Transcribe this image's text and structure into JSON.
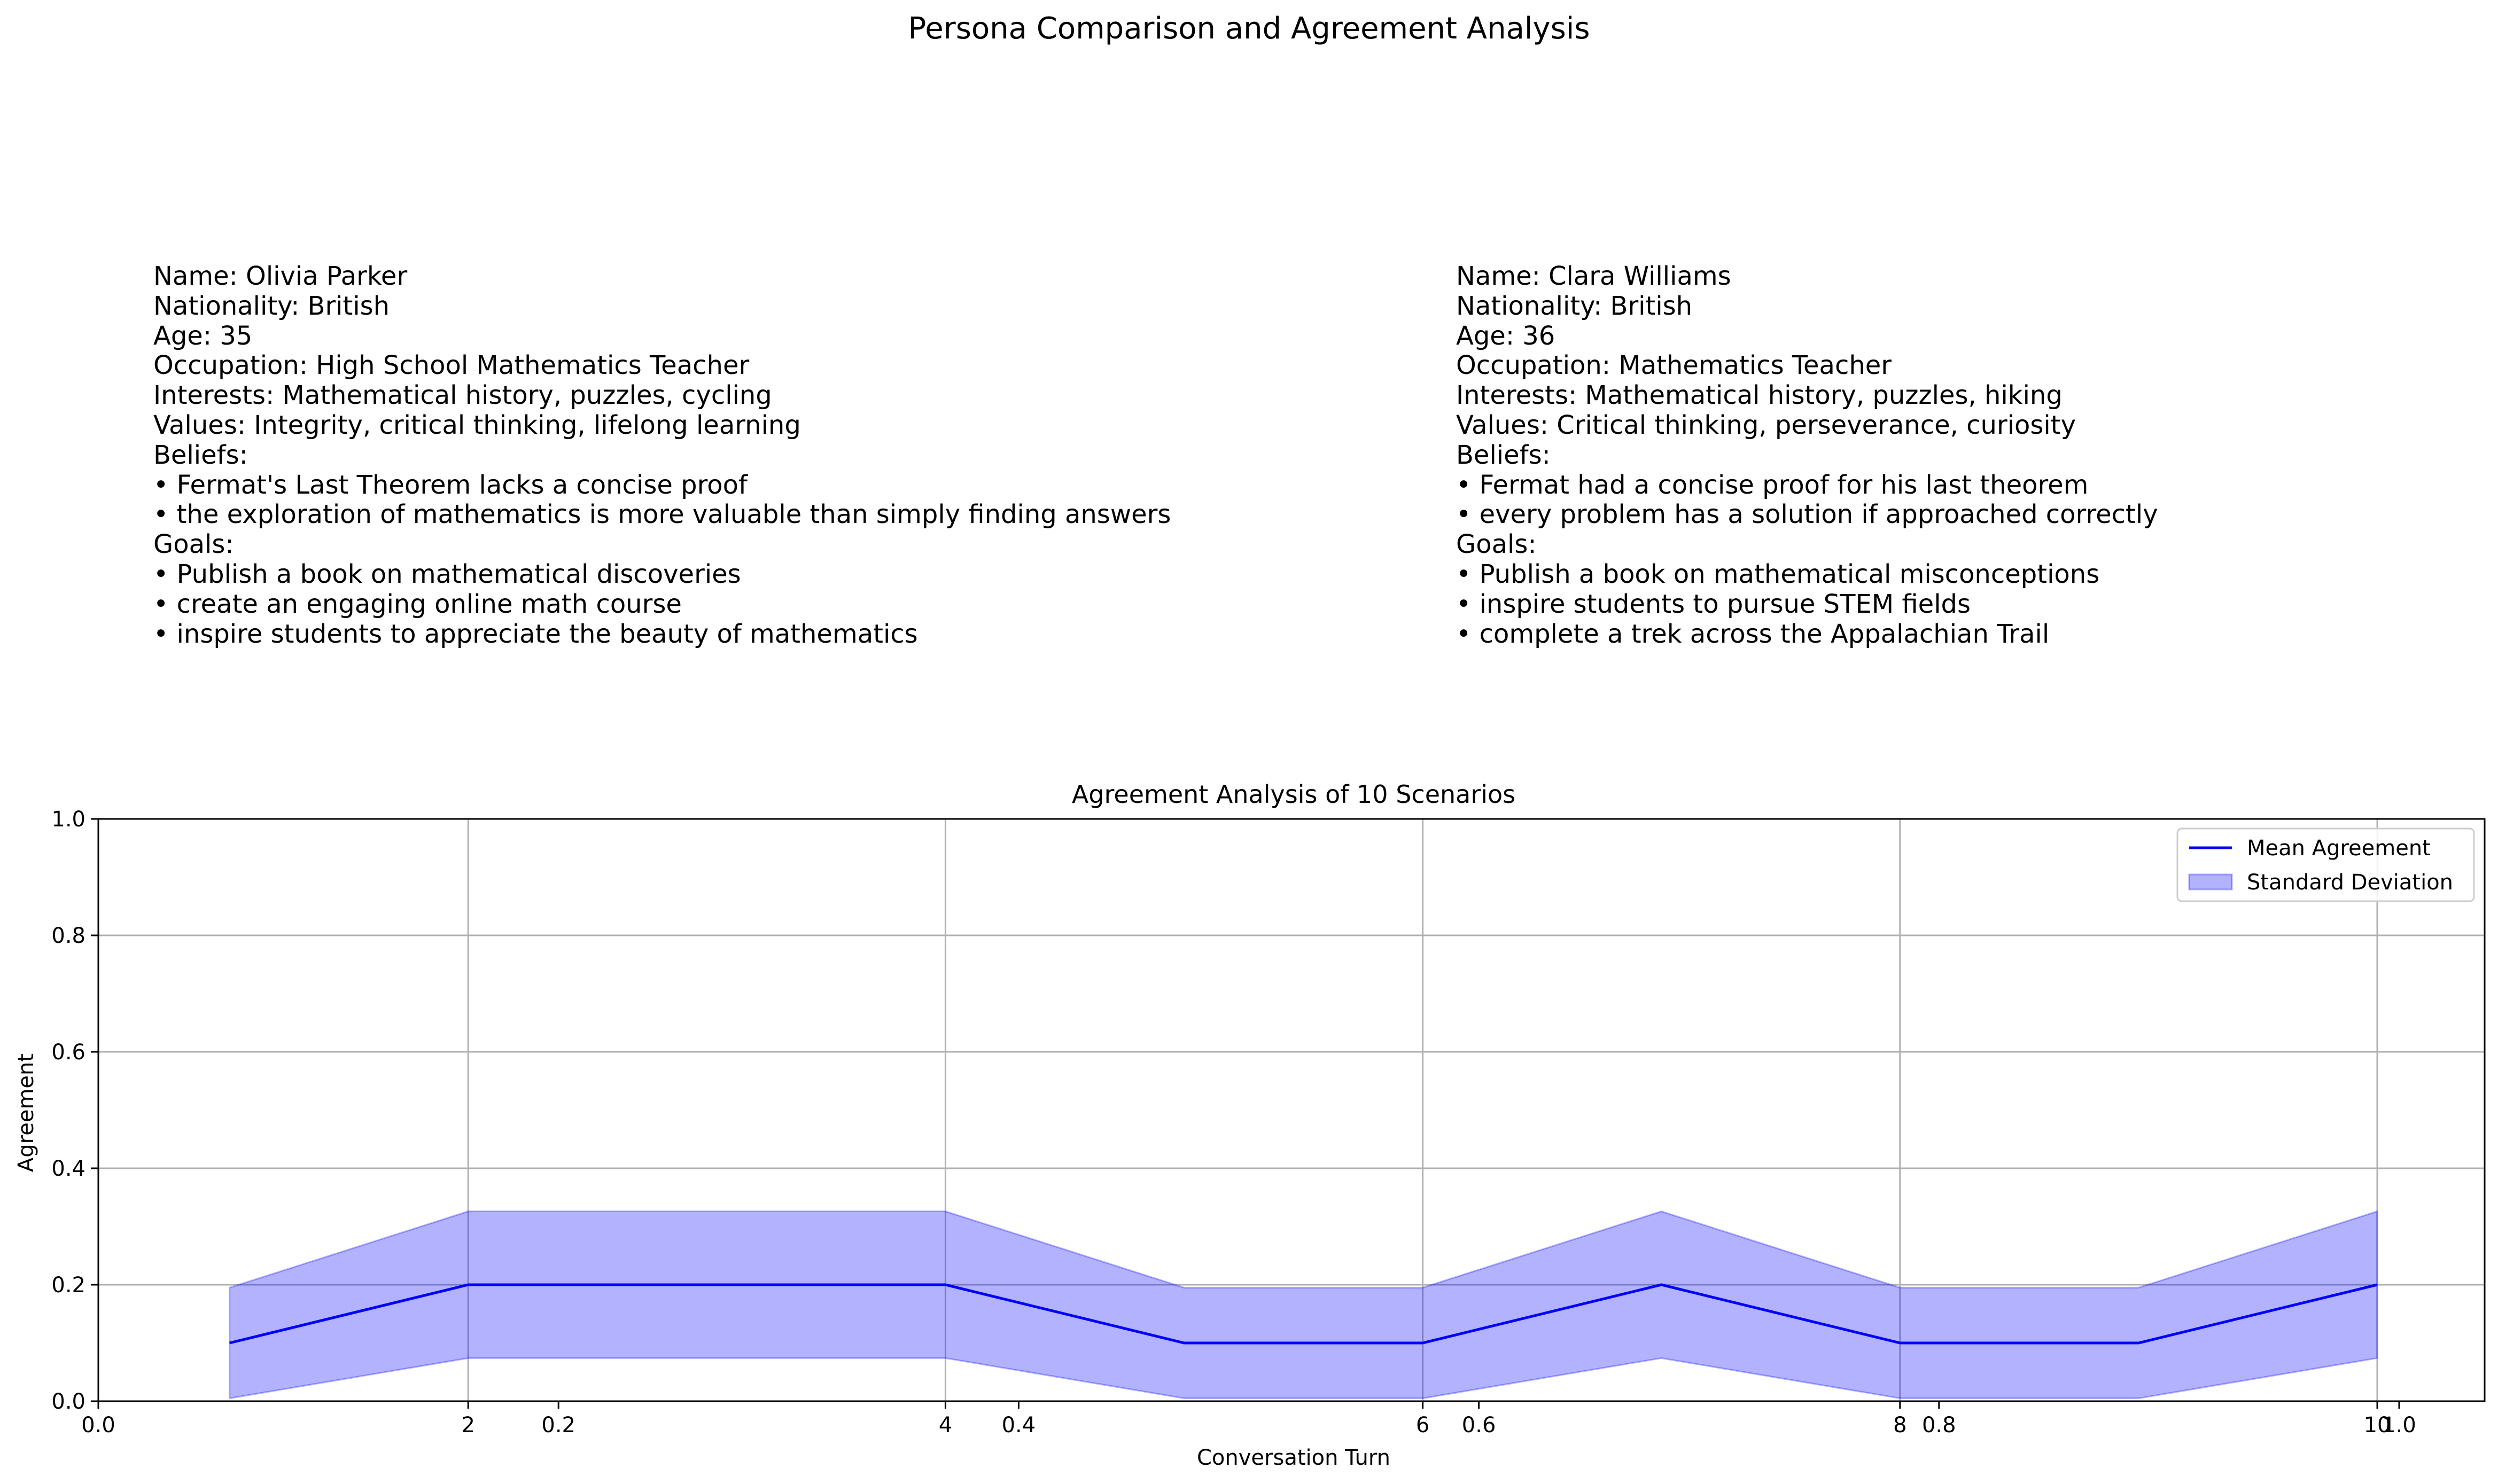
{
  "figure": {
    "suptitle": "Persona Comparison and Agreement Analysis"
  },
  "personas": [
    {
      "lines": [
        "Name: Olivia Parker",
        "Nationality: British",
        "Age: 35",
        "Occupation: High School Mathematics Teacher",
        "Interests: Mathematical history, puzzles, cycling",
        "Values: Integrity, critical thinking, lifelong learning",
        "Beliefs:",
        "• Fermat's Last Theorem lacks a concise proof",
        "• the exploration of mathematics is more valuable than simply finding answers",
        "Goals:",
        "• Publish a book on mathematical discoveries",
        "• create an engaging online math course",
        "• inspire students to appreciate the beauty of mathematics"
      ]
    },
    {
      "lines": [
        "Name: Clara Williams",
        "Nationality: British",
        "Age: 36",
        "Occupation: Mathematics Teacher",
        "Interests: Mathematical history, puzzles, hiking",
        "Values: Critical thinking, perseverance, curiosity",
        "Beliefs:",
        "• Fermat had a concise proof for his last theorem",
        "• every problem has a solution if approached correctly",
        "Goals:",
        "• Publish a book on mathematical misconceptions",
        "• inspire students to pursue STEM fields",
        "• complete a trek across the Appalachian Trail"
      ]
    }
  ],
  "chart_data": {
    "type": "line",
    "title": "Agreement Analysis of 10 Scenarios",
    "xlabel": "Conversation Turn",
    "ylabel": "Agreement",
    "x": [
      1,
      2,
      3,
      4,
      5,
      6,
      7,
      8,
      9,
      10
    ],
    "xlim": [
      0.45,
      10.45
    ],
    "ylim": [
      0,
      1
    ],
    "grid": true,
    "x_ticks": [
      2,
      4,
      6,
      8,
      10
    ],
    "y_ticks": [
      "0.0",
      "0.2",
      "0.4",
      "0.6",
      "0.8",
      "1.0"
    ],
    "overlay_x_ticks": {
      "note_values": [
        0.0,
        0.2,
        0.4,
        0.6,
        0.8,
        1.0
      ],
      "labels": [
        "0.0",
        "0.2",
        "0.4",
        "0.6",
        "0.8",
        "1.0"
      ]
    },
    "series": [
      {
        "name": "Mean Agreement",
        "kind": "line",
        "color": "#0000ff",
        "values": [
          0.1,
          0.2,
          0.2,
          0.2,
          0.1,
          0.1,
          0.2,
          0.1,
          0.1,
          0.2
        ]
      },
      {
        "name": "Standard Deviation",
        "kind": "band",
        "color": "#0000ff",
        "lower": [
          0.005,
          0.074,
          0.074,
          0.074,
          0.005,
          0.005,
          0.074,
          0.005,
          0.005,
          0.074
        ],
        "upper": [
          0.195,
          0.326,
          0.326,
          0.326,
          0.195,
          0.195,
          0.326,
          0.195,
          0.195,
          0.326
        ]
      }
    ],
    "legend": {
      "position": "top-right",
      "entries": [
        "Mean Agreement",
        "Standard Deviation"
      ]
    }
  }
}
